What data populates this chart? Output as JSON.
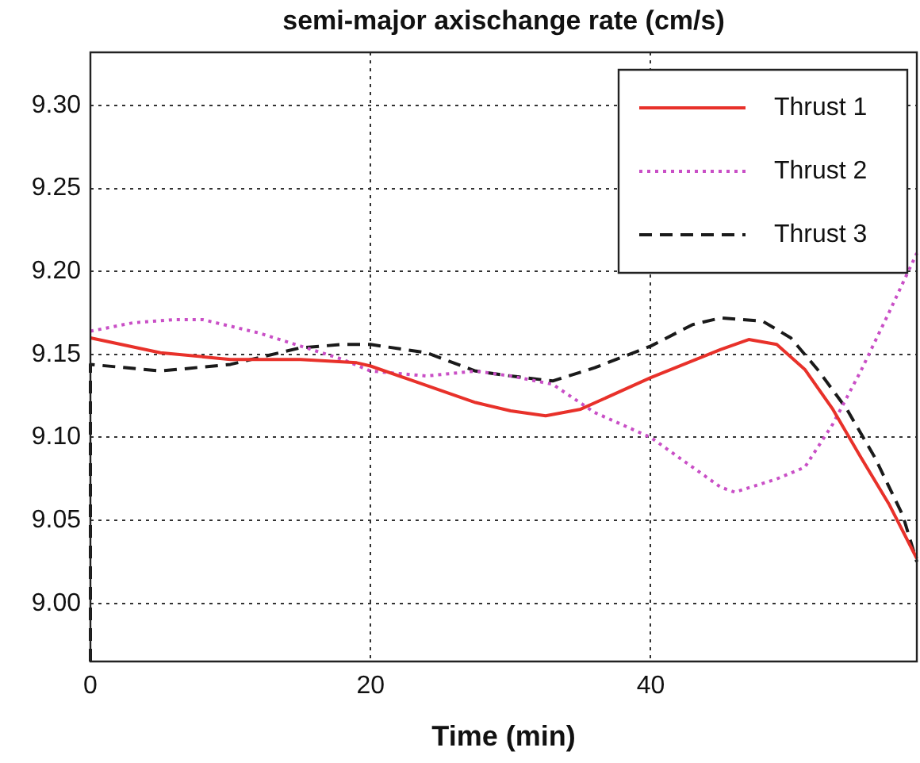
{
  "chart_data": {
    "type": "line",
    "title": "semi-major axischange rate (cm/s)",
    "xlabel": "Time (min)",
    "xlim": [
      0,
      59
    ],
    "ylim": [
      8.965,
      9.332
    ],
    "xticks": [
      0,
      20,
      40
    ],
    "yticks": [
      {
        "value": 9.0,
        "label": "9.00"
      },
      {
        "value": 9.05,
        "label": "9.05"
      },
      {
        "value": 9.1,
        "label": "9.10"
      },
      {
        "value": 9.15,
        "label": "9.15"
      },
      {
        "value": 9.2,
        "label": "9.20"
      },
      {
        "value": 9.25,
        "label": "9.25"
      },
      {
        "value": 9.3,
        "label": "9.30"
      }
    ],
    "grid": true,
    "legend": "top right",
    "marker": "none",
    "series": [
      {
        "name": "Thrust 1",
        "color": "#e8312a",
        "line_style": "solid",
        "x": [
          0,
          5,
          10,
          15,
          19,
          20,
          27.5,
          30,
          32.5,
          35,
          40,
          45,
          47,
          49,
          51,
          53,
          55,
          57,
          59
        ],
        "values": [
          9.16,
          9.151,
          9.147,
          9.147,
          9.145,
          9.143,
          9.121,
          9.116,
          9.113,
          9.117,
          9.136,
          9.153,
          9.159,
          9.156,
          9.141,
          9.117,
          9.088,
          9.06,
          9.027
        ]
      },
      {
        "name": "Thrust 2",
        "color": "#c94fc6",
        "line_style": "dotted",
        "x": [
          0,
          3,
          6,
          8,
          12,
          15,
          18,
          20,
          24,
          27.5,
          30,
          33,
          36,
          40,
          43,
          45,
          46,
          49,
          51,
          53,
          55,
          57,
          59
        ],
        "values": [
          9.164,
          9.169,
          9.171,
          9.171,
          9.163,
          9.155,
          9.147,
          9.14,
          9.137,
          9.14,
          9.137,
          9.132,
          9.115,
          9.1,
          9.082,
          9.07,
          9.067,
          9.075,
          9.082,
          9.108,
          9.14,
          9.175,
          9.211
        ]
      },
      {
        "name": "Thrust 3",
        "color": "#1a1a1a",
        "line_style": "dashed",
        "x": [
          0,
          0,
          5,
          10,
          15,
          18,
          20,
          24,
          27.5,
          30,
          33,
          36,
          40,
          43,
          45,
          48,
          50,
          52,
          54,
          56,
          58,
          59
        ],
        "values": [
          8.965,
          9.144,
          9.14,
          9.144,
          9.154,
          9.156,
          9.156,
          9.151,
          9.14,
          9.137,
          9.134,
          9.142,
          9.155,
          9.168,
          9.172,
          9.17,
          9.16,
          9.14,
          9.117,
          9.088,
          9.053,
          9.025
        ]
      }
    ]
  }
}
